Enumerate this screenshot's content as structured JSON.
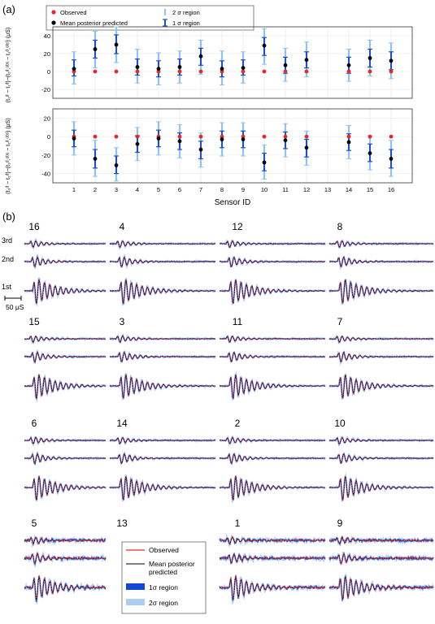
{
  "panel_a": {
    "label": "(a)",
    "legend": {
      "observed": "Observed",
      "mean": "Mean posterior predicted",
      "sigma2": "2 σ region",
      "sigma1": "1 σ region"
    },
    "xlabel": "Sensor ID",
    "top_ylabel": "(t₂ᵈ − t₁ᵈ)−(t₂ᵈ,ᵒᵇˢ − t₁ᵈ,ᵒᵇˢ) (μS)",
    "bottom_ylabel": "(t₃ᵈ − t₂ᵈ)−(t₃ᵈ,ᵒᵇˢ − t₂ᵈ,ᵒᵇˢ) (μS)",
    "colors": {
      "observed": "#e8262b",
      "mean": "#000000",
      "sigma1": "#1f4fcf",
      "sigma2": "#8fc3ee"
    }
  },
  "panel_b": {
    "label": "(b)",
    "row_labels": [
      "3rd",
      "2nd",
      "1st"
    ],
    "scale_label": "50 μS",
    "sensor_grid": [
      [
        "16",
        "4",
        "12",
        "8"
      ],
      [
        "15",
        "3",
        "11",
        "7"
      ],
      [
        "6",
        "14",
        "2",
        "10"
      ],
      [
        "5",
        "13",
        "1",
        "9"
      ]
    ],
    "legend": {
      "observed": "Observed",
      "mean_line1": "Mean posterior",
      "mean_line2": "predicted",
      "sigma1": "1σ region",
      "sigma2": "2σ region"
    },
    "colors": {
      "observed": "#e8262b",
      "mean": "#000000",
      "sigma1": "#1347d6",
      "sigma2": "#a9cdf3"
    }
  },
  "chart_data": [
    {
      "type": "scatter",
      "title": "",
      "xlabel": "Sensor ID",
      "ylabel": "(t2d − t1d)−(t2d,obs − t1d,obs) (μS)",
      "x_ticks": [
        1,
        2,
        3,
        4,
        5,
        6,
        7,
        8,
        9,
        10,
        11,
        12,
        13,
        14,
        15,
        16
      ],
      "y_ticks": [
        -20,
        0,
        20,
        40
      ],
      "xlim": [
        0,
        17
      ],
      "ylim": [
        -30,
        50
      ],
      "grid": true,
      "legend_position": "top-left",
      "sensors": [
        1,
        2,
        3,
        4,
        5,
        6,
        7,
        8,
        9,
        10,
        11,
        12,
        14,
        15,
        16
      ],
      "observed": [
        0,
        0,
        0,
        0,
        0,
        0,
        0,
        0,
        0,
        0,
        0,
        0,
        0,
        0,
        0
      ],
      "mean": [
        3,
        25,
        30,
        5,
        3,
        5,
        17,
        3,
        4,
        29,
        7,
        13,
        7,
        15,
        12
      ],
      "sigma1_low": [
        -5,
        15,
        20,
        -4,
        -6,
        -4,
        7,
        -6,
        -4,
        18,
        -2,
        4,
        -2,
        5,
        2
      ],
      "sigma1_high": [
        13,
        35,
        41,
        14,
        12,
        14,
        26,
        12,
        13,
        38,
        16,
        22,
        16,
        25,
        22
      ],
      "sigma2_low": [
        -14,
        4,
        10,
        -13,
        -15,
        -13,
        -3,
        -15,
        -13,
        8,
        -11,
        -6,
        -11,
        -5,
        -8
      ],
      "sigma2_high": [
        22,
        45,
        50,
        25,
        21,
        23,
        35,
        23,
        22,
        48,
        26,
        33,
        25,
        35,
        32
      ]
    },
    {
      "type": "scatter",
      "title": "",
      "xlabel": "Sensor ID",
      "ylabel": "(t3d − t2d)−(t3d,obs − t2d,obs) (μS)",
      "x_ticks": [
        1,
        2,
        3,
        4,
        5,
        6,
        7,
        8,
        9,
        10,
        11,
        12,
        13,
        14,
        15,
        16
      ],
      "y_ticks": [
        -40,
        -20,
        0,
        20
      ],
      "xlim": [
        0,
        17
      ],
      "ylim": [
        -50,
        30
      ],
      "grid": true,
      "sensors": [
        1,
        2,
        3,
        4,
        5,
        6,
        7,
        8,
        9,
        10,
        11,
        12,
        14,
        15,
        16
      ],
      "observed": [
        0,
        0,
        0,
        0,
        0,
        0,
        0,
        0,
        0,
        0,
        0,
        0,
        0,
        0,
        0
      ],
      "mean": [
        -2,
        -24,
        -31,
        -8,
        -2,
        -5,
        -14,
        -3,
        -3,
        -28,
        -4,
        -12,
        -6,
        -18,
        -24
      ],
      "sigma1_low": [
        -11,
        -34,
        -40,
        -17,
        -11,
        -14,
        -24,
        -12,
        -12,
        -37,
        -13,
        -22,
        -15,
        -27,
        -34
      ],
      "sigma1_high": [
        7,
        -14,
        -21,
        1,
        7,
        4,
        -5,
        6,
        6,
        -18,
        5,
        -3,
        3,
        -8,
        -14
      ],
      "sigma2_low": [
        -20,
        -43,
        -48,
        -26,
        -20,
        -23,
        -33,
        -21,
        -21,
        -46,
        -22,
        -31,
        -24,
        -36,
        -43
      ],
      "sigma2_high": [
        16,
        -4,
        -12,
        10,
        16,
        13,
        4,
        15,
        15,
        -9,
        14,
        6,
        12,
        1,
        -4
      ]
    }
  ]
}
